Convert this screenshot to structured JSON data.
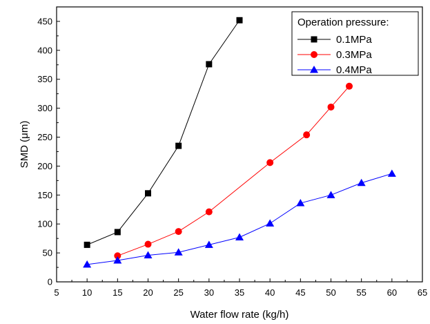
{
  "chart_data": {
    "type": "line",
    "xlabel": "Water flow rate (kg/h)",
    "ylabel": "SMD (μm)",
    "xlim": [
      5,
      65
    ],
    "ylim": [
      0,
      475
    ],
    "x_ticks": [
      "5",
      "10",
      "15",
      "20",
      "25",
      "30",
      "35",
      "40",
      "45",
      "50",
      "55",
      "60",
      "65"
    ],
    "y_ticks": [
      "0",
      "50",
      "100",
      "150",
      "200",
      "250",
      "300",
      "350",
      "400",
      "450"
    ],
    "grid": false,
    "legend_position": "top-right",
    "legend_title": "Operation pressure:",
    "series": [
      {
        "name": "0.1MPa",
        "color": "#000000",
        "marker": "square",
        "x": [
          10,
          15,
          20,
          25,
          30,
          35
        ],
        "y": [
          64,
          86,
          153,
          235,
          376,
          452
        ]
      },
      {
        "name": "0.3MPa",
        "color": "#ff0000",
        "marker": "circle",
        "x": [
          15,
          20,
          25,
          30,
          40,
          46,
          50,
          53
        ],
        "y": [
          45,
          65,
          87,
          121,
          206,
          254,
          302,
          338
        ]
      },
      {
        "name": "0.4MPa",
        "color": "#0000ff",
        "marker": "triangle",
        "x": [
          10,
          15,
          20,
          25,
          30,
          35,
          40,
          45,
          50,
          55,
          60
        ],
        "y": [
          30,
          37,
          46,
          51,
          64,
          77,
          101,
          136,
          150,
          171,
          187
        ]
      }
    ]
  }
}
